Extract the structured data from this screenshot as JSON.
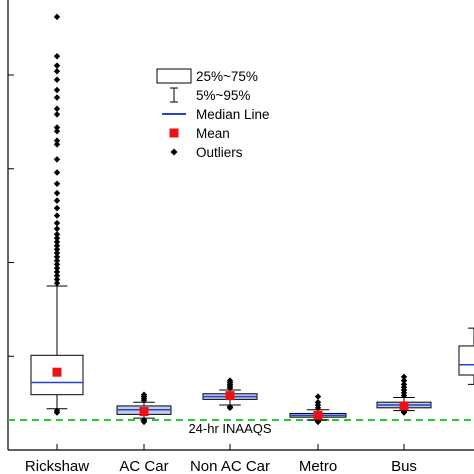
{
  "chart_data": {
    "type": "box",
    "categories": [
      "Rickshaw",
      "AC Car",
      "Non AC Car",
      "Metro",
      "Bus",
      ""
    ],
    "series": [
      {
        "category": "Rickshaw",
        "p5": 44,
        "q1": 59,
        "median": 72,
        "q3": 101,
        "p95": 175,
        "mean": 83,
        "outliers_low": [
          42,
          40
        ],
        "outliers_high": [
          178,
          182,
          186,
          190,
          194,
          198,
          202,
          206,
          210,
          214,
          218,
          222,
          226,
          230,
          236,
          242,
          250,
          258,
          266,
          274,
          284,
          296,
          310,
          326,
          330,
          340,
          344,
          358,
          364,
          376,
          384,
          395,
          404,
          410,
          420,
          462
        ]
      },
      {
        "category": "AC Car",
        "p5": 34,
        "q1": 38,
        "median": 43,
        "q3": 47,
        "p95": 51,
        "mean": 41,
        "outliers_low": [
          32,
          30
        ],
        "outliers_high": [
          53,
          55,
          57,
          59
        ]
      },
      {
        "category": "Non AC Car",
        "p5": 48,
        "q1": 54,
        "median": 57,
        "q3": 60,
        "p95": 64,
        "mean": 58,
        "outliers_low": [
          46,
          45
        ],
        "outliers_high": [
          66,
          68,
          70,
          72,
          74
        ]
      },
      {
        "category": "Metro",
        "p5": 32,
        "q1": 35,
        "median": 37,
        "q3": 39,
        "p95": 43,
        "mean": 37,
        "outliers_low": [
          31,
          30
        ],
        "outliers_high": [
          45,
          48,
          51,
          57
        ]
      },
      {
        "category": "Bus",
        "p5": 42,
        "q1": 45,
        "median": 48,
        "q3": 51,
        "p95": 56,
        "mean": 47,
        "outliers_low": [
          41,
          40
        ],
        "outliers_high": [
          58,
          61,
          64,
          67,
          70,
          74,
          78
        ]
      },
      {
        "category": "",
        "p5": 70,
        "q1": 80,
        "median": 91,
        "q3": 111,
        "p95": 130,
        "mean": null,
        "outliers_low": [],
        "outliers_high": []
      }
    ],
    "reference_line": {
      "value": 32,
      "label": "24-hr INAAQS",
      "color": "#22cc22"
    },
    "ylim": [
      0,
      480
    ],
    "yticks": [
      0,
      100,
      200,
      300,
      400
    ],
    "ytick_labels": [
      "",
      "",
      "",
      "",
      ""
    ],
    "title": "",
    "xlabel": "",
    "ylabel": "",
    "colors": {
      "median": "#2244cc",
      "mean": "#ee1111",
      "box_fill": "#c6cbe8",
      "box_fill_main": "#ffffff"
    },
    "legend": {
      "position": "top-center",
      "items": [
        {
          "symbol": "box",
          "label": "25%~75%"
        },
        {
          "symbol": "whisker",
          "label": "5%~95%"
        },
        {
          "symbol": "median-line",
          "label": "Median Line"
        },
        {
          "symbol": "mean-square",
          "label": "Mean"
        },
        {
          "symbol": "diamond",
          "label": "Outliers"
        }
      ]
    }
  }
}
